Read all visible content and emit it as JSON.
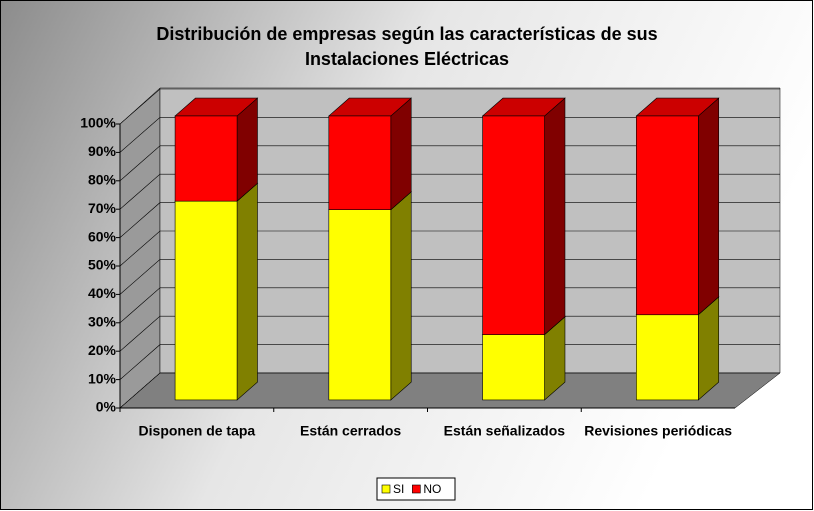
{
  "chart_data": {
    "type": "bar",
    "stacked": true,
    "title": "Distribución de empresas según las características de sus Instalaciones Eléctricas",
    "categories": [
      "Disponen de tapa",
      "Están cerrados",
      "Están señalizados",
      "Revisiones periódicas"
    ],
    "series": [
      {
        "name": "SI",
        "color": "#ffff00",
        "values": [
          70,
          67,
          23,
          30
        ]
      },
      {
        "name": "NO",
        "color": "#ff0000",
        "values": [
          30,
          33,
          77,
          70
        ]
      }
    ],
    "ylim": [
      0,
      100
    ],
    "yticks": [
      {
        "value": 0,
        "label": "0%"
      },
      {
        "value": 10,
        "label": "10%"
      },
      {
        "value": 20,
        "label": "20%"
      },
      {
        "value": 30,
        "label": "30%"
      },
      {
        "value": 40,
        "label": "40%"
      },
      {
        "value": 50,
        "label": "50%"
      },
      {
        "value": 60,
        "label": "60%"
      },
      {
        "value": 70,
        "label": "70%"
      },
      {
        "value": 80,
        "label": "80%"
      },
      {
        "value": 90,
        "label": "90%"
      },
      {
        "value": 100,
        "label": "100%"
      }
    ],
    "grid": true,
    "legend": "bottom"
  }
}
